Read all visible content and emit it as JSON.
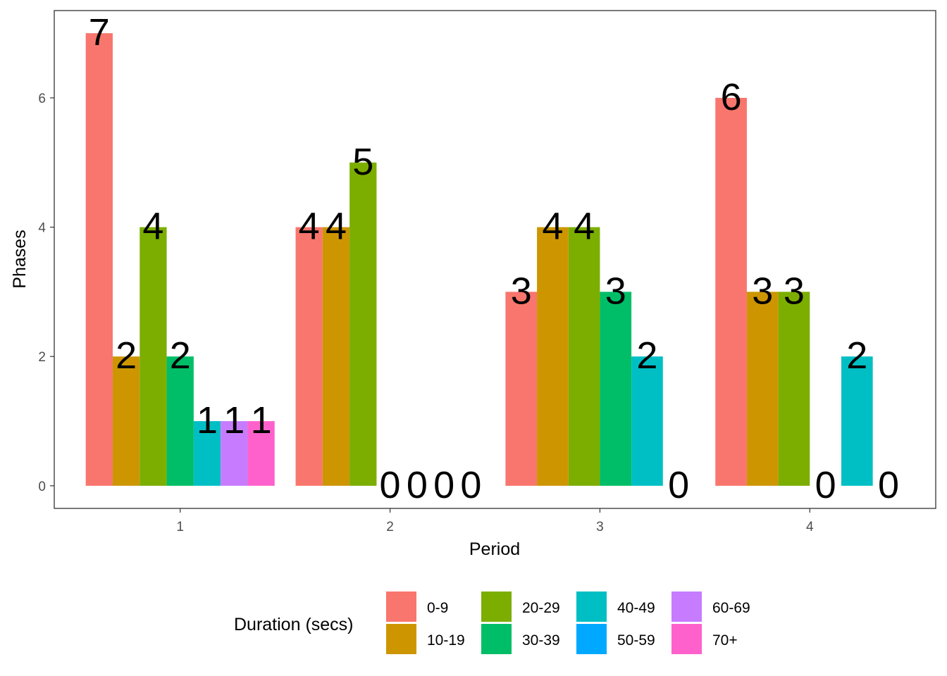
{
  "chart_data": {
    "type": "bar",
    "xlabel": "Period",
    "ylabel": "Phases",
    "categories": [
      "1",
      "2",
      "3",
      "4"
    ],
    "y_ticks": [
      "0",
      "2",
      "4",
      "6"
    ],
    "ylim": [
      -0.35,
      7.35
    ],
    "grid": false,
    "legend": {
      "title": "Duration (secs)",
      "position": "bottom"
    },
    "series": [
      {
        "name": "0-9",
        "color": "#F8766D",
        "values": [
          7,
          4,
          3,
          6
        ]
      },
      {
        "name": "10-19",
        "color": "#CD9600",
        "values": [
          2,
          4,
          4,
          3
        ]
      },
      {
        "name": "20-29",
        "color": "#7CAE00",
        "values": [
          4,
          5,
          4,
          3
        ]
      },
      {
        "name": "30-39",
        "color": "#00BE67",
        "values": [
          2,
          0,
          3,
          0
        ]
      },
      {
        "name": "40-49",
        "color": "#00BFC4",
        "values": [
          1,
          0,
          2,
          2
        ]
      },
      {
        "name": "50-59",
        "color": "#00A9FF",
        "values": [
          null,
          0,
          null,
          null
        ]
      },
      {
        "name": "60-69",
        "color": "#C77CFF",
        "values": [
          1,
          0,
          0,
          0
        ]
      },
      {
        "name": "70+",
        "color": "#FF61CC",
        "values": [
          1,
          null,
          null,
          null
        ]
      }
    ],
    "groups": [
      {
        "category": "1",
        "bars": [
          {
            "series": 0,
            "value": 7,
            "label": "7"
          },
          {
            "series": 1,
            "value": 2,
            "label": "2"
          },
          {
            "series": 2,
            "value": 4,
            "label": "4"
          },
          {
            "series": 3,
            "value": 2,
            "label": "2"
          },
          {
            "series": 4,
            "value": 1,
            "label": "1"
          },
          {
            "series": 6,
            "value": 1,
            "label": "1"
          },
          {
            "series": 7,
            "value": 1,
            "label": "1"
          }
        ]
      },
      {
        "category": "2",
        "bars": [
          {
            "series": 0,
            "value": 4,
            "label": "4"
          },
          {
            "series": 1,
            "value": 4,
            "label": "4"
          },
          {
            "series": 2,
            "value": 5,
            "label": "5"
          },
          {
            "series": 3,
            "value": 0,
            "label": "0"
          },
          {
            "series": 4,
            "value": 0,
            "label": "0"
          },
          {
            "series": 5,
            "value": 0,
            "label": "0"
          },
          {
            "series": 6,
            "value": 0,
            "label": "0"
          }
        ]
      },
      {
        "category": "3",
        "bars": [
          {
            "series": 0,
            "value": 3,
            "label": "3"
          },
          {
            "series": 1,
            "value": 4,
            "label": "4"
          },
          {
            "series": 2,
            "value": 4,
            "label": "4"
          },
          {
            "series": 3,
            "value": 3,
            "label": "3"
          },
          {
            "series": 4,
            "value": 2,
            "label": "2"
          },
          {
            "series": 6,
            "value": 0,
            "label": "0"
          }
        ]
      },
      {
        "category": "4",
        "bars": [
          {
            "series": 0,
            "value": 6,
            "label": "6"
          },
          {
            "series": 1,
            "value": 3,
            "label": "3"
          },
          {
            "series": 2,
            "value": 3,
            "label": "3"
          },
          {
            "series": 3,
            "value": 0,
            "label": "0"
          },
          {
            "series": 4,
            "value": 2,
            "label": "2"
          },
          {
            "series": 6,
            "value": 0,
            "label": "0"
          }
        ]
      }
    ]
  }
}
